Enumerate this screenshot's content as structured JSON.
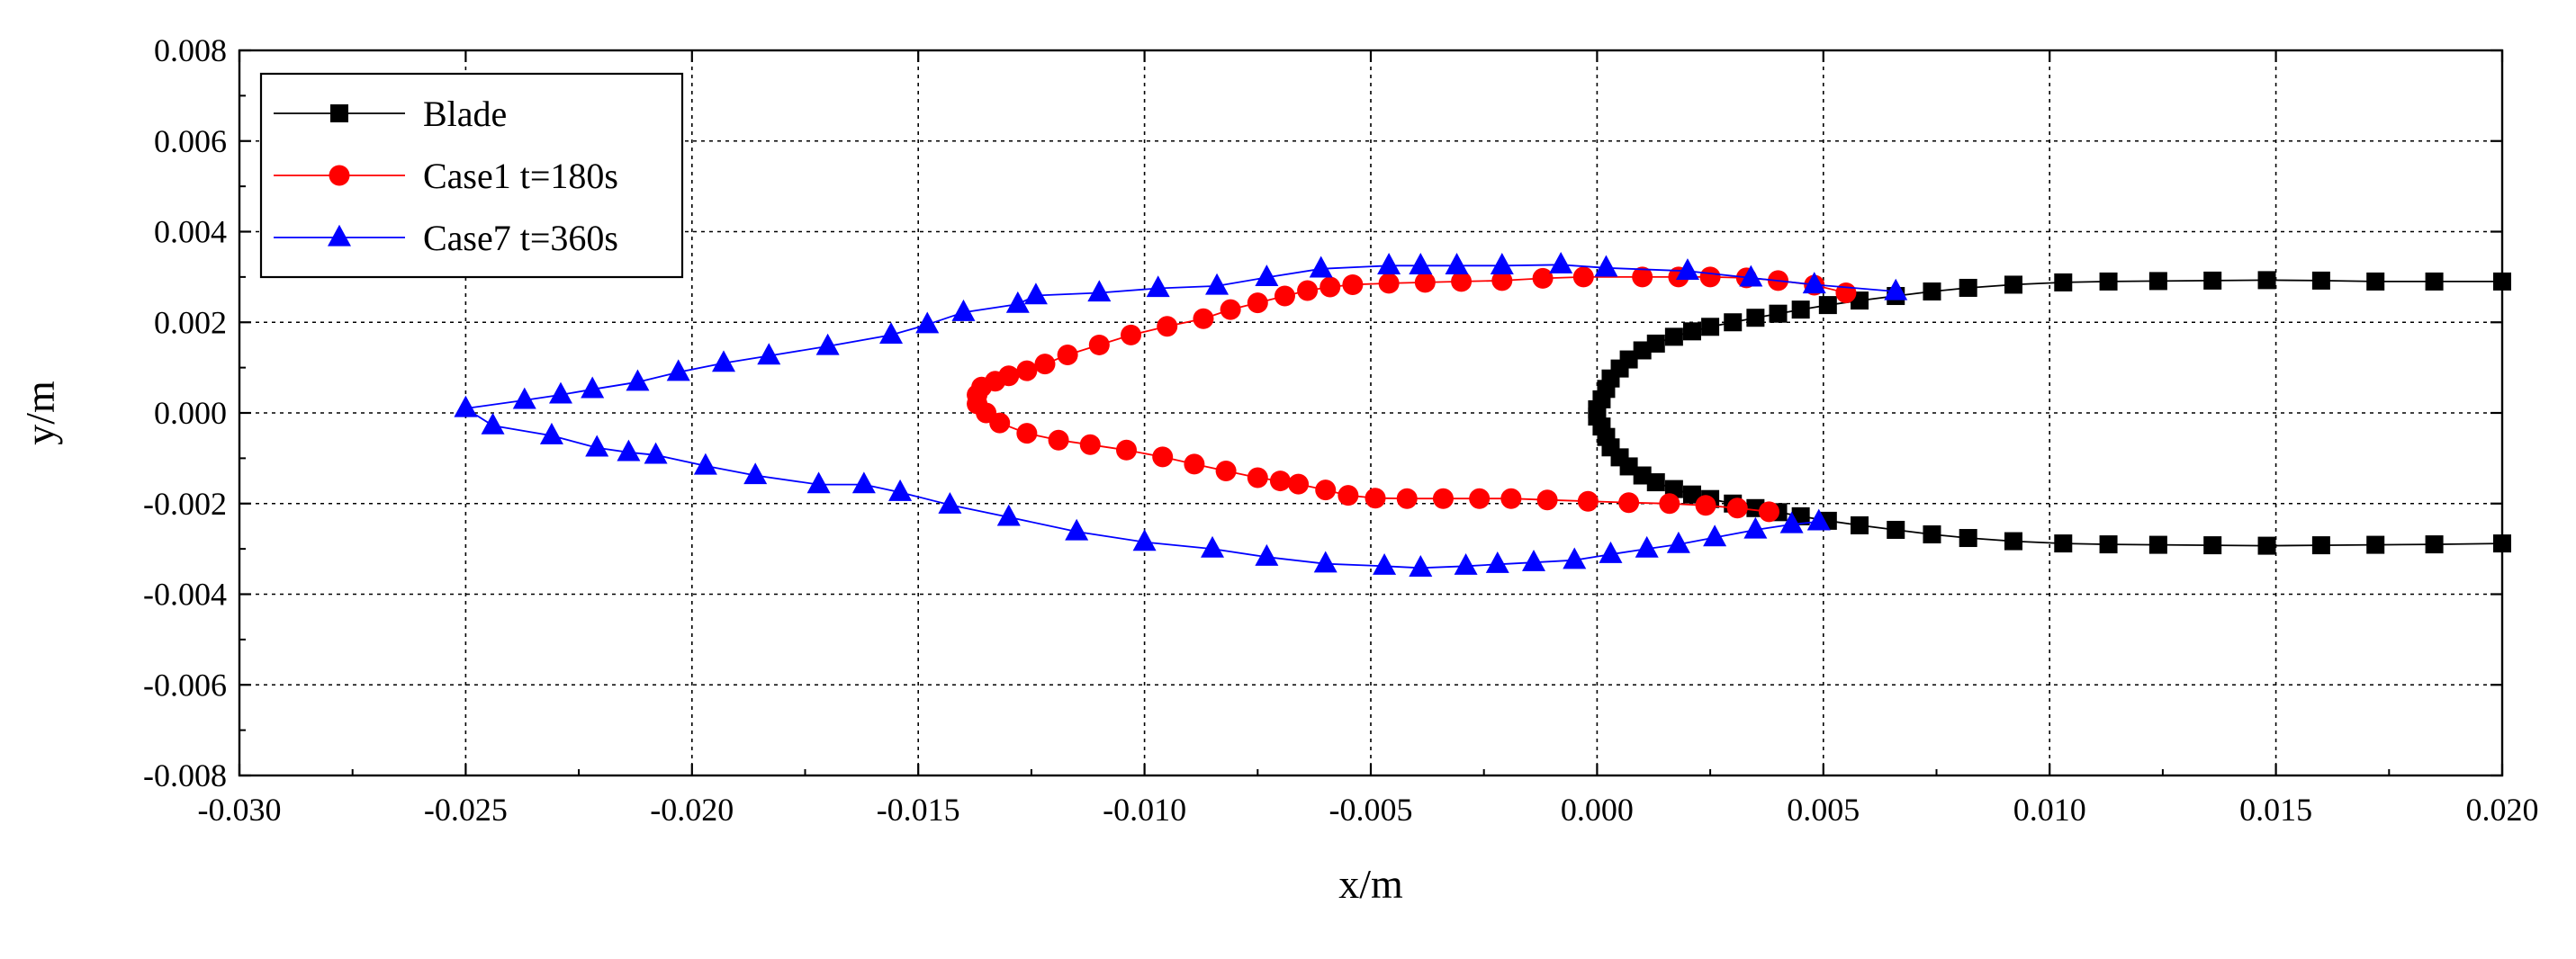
{
  "chart_data": {
    "type": "line",
    "title": "",
    "xlabel": "x/m",
    "ylabel": "y/m",
    "xlim": [
      -0.03,
      0.02
    ],
    "ylim": [
      -0.008,
      0.008
    ],
    "xticks": [
      -0.03,
      -0.025,
      -0.02,
      -0.015,
      -0.01,
      -0.005,
      0.0,
      0.005,
      0.01,
      0.015,
      0.02
    ],
    "yticks": [
      -0.008,
      -0.006,
      -0.004,
      -0.002,
      0.0,
      0.002,
      0.004,
      0.006,
      0.008
    ],
    "xtick_labels": [
      "-0.030",
      "-0.025",
      "-0.020",
      "-0.015",
      "-0.010",
      "-0.005",
      "0.000",
      "0.005",
      "0.010",
      "0.015",
      "0.020"
    ],
    "ytick_labels": [
      "-0.008",
      "-0.006",
      "-0.004",
      "-0.002",
      "0.000",
      "0.002",
      "0.004",
      "0.006",
      "0.008"
    ],
    "grid": true,
    "legend_position": "top-left",
    "series": [
      {
        "name": "Blade",
        "color": "#000000",
        "marker": "square",
        "points": [
          [
            0.02,
            0.0029
          ],
          [
            0.0185,
            0.0029
          ],
          [
            0.0172,
            0.0029
          ],
          [
            0.016,
            0.00292
          ],
          [
            0.0148,
            0.00293
          ],
          [
            0.0136,
            0.00292
          ],
          [
            0.0124,
            0.00291
          ],
          [
            0.0113,
            0.0029
          ],
          [
            0.0103,
            0.00288
          ],
          [
            0.0092,
            0.00283
          ],
          [
            0.0082,
            0.00276
          ],
          [
            0.0074,
            0.00268
          ],
          [
            0.0066,
            0.00258
          ],
          [
            0.0058,
            0.00248
          ],
          [
            0.0051,
            0.00238
          ],
          [
            0.0045,
            0.00228
          ],
          [
            0.004,
            0.00219
          ],
          [
            0.0035,
            0.0021
          ],
          [
            0.003,
            0.002
          ],
          [
            0.0025,
            0.0019
          ],
          [
            0.0021,
            0.0018
          ],
          [
            0.0017,
            0.00168
          ],
          [
            0.0013,
            0.00153
          ],
          [
            0.001,
            0.00138
          ],
          [
            0.0007,
            0.00118
          ],
          [
            0.0005,
            0.00098
          ],
          [
            0.0003,
            0.00076
          ],
          [
            0.0002,
            0.00053
          ],
          [
            0.0001,
            0.0003
          ],
          [
            0.0,
            8e-05
          ],
          [
            0.0,
            -8e-05
          ],
          [
            0.0001,
            -0.0003
          ],
          [
            0.0002,
            -0.00053
          ],
          [
            0.0003,
            -0.00076
          ],
          [
            0.0005,
            -0.00098
          ],
          [
            0.0007,
            -0.00118
          ],
          [
            0.001,
            -0.00138
          ],
          [
            0.0013,
            -0.00153
          ],
          [
            0.0017,
            -0.00168
          ],
          [
            0.0021,
            -0.0018
          ],
          [
            0.0025,
            -0.0019
          ],
          [
            0.003,
            -0.002
          ],
          [
            0.0035,
            -0.0021
          ],
          [
            0.004,
            -0.00219
          ],
          [
            0.0045,
            -0.00228
          ],
          [
            0.0051,
            -0.00238
          ],
          [
            0.0058,
            -0.00248
          ],
          [
            0.0066,
            -0.00258
          ],
          [
            0.0074,
            -0.00268
          ],
          [
            0.0082,
            -0.00276
          ],
          [
            0.0092,
            -0.00283
          ],
          [
            0.0103,
            -0.00288
          ],
          [
            0.0113,
            -0.0029
          ],
          [
            0.0124,
            -0.00291
          ],
          [
            0.0136,
            -0.00292
          ],
          [
            0.0148,
            -0.00293
          ],
          [
            0.016,
            -0.00292
          ],
          [
            0.0172,
            -0.00291
          ],
          [
            0.0185,
            -0.0029
          ],
          [
            0.02,
            -0.00288
          ]
        ]
      },
      {
        "name": "Case1 t=180s",
        "color": "#ff0000",
        "marker": "circle",
        "points": [
          [
            0.0055,
            0.00265
          ],
          [
            0.0048,
            0.00282
          ],
          [
            0.004,
            0.00292
          ],
          [
            0.0033,
            0.00298
          ],
          [
            0.0025,
            0.003
          ],
          [
            0.0018,
            0.003
          ],
          [
            0.001,
            0.003
          ],
          [
            -0.0003,
            0.003
          ],
          [
            -0.0012,
            0.00297
          ],
          [
            -0.0021,
            0.00292
          ],
          [
            -0.003,
            0.0029
          ],
          [
            -0.0038,
            0.00288
          ],
          [
            -0.0046,
            0.00286
          ],
          [
            -0.0054,
            0.00283
          ],
          [
            -0.0059,
            0.00278
          ],
          [
            -0.0064,
            0.0027
          ],
          [
            -0.0069,
            0.00258
          ],
          [
            -0.0075,
            0.00243
          ],
          [
            -0.0081,
            0.00228
          ],
          [
            -0.0087,
            0.00208
          ],
          [
            -0.0095,
            0.00191
          ],
          [
            -0.0103,
            0.00172
          ],
          [
            -0.011,
            0.0015
          ],
          [
            -0.0117,
            0.00128
          ],
          [
            -0.0122,
            0.00108
          ],
          [
            -0.0126,
            0.00093
          ],
          [
            -0.013,
            0.00082
          ],
          [
            -0.0133,
            0.0007
          ],
          [
            -0.0136,
            0.00057
          ],
          [
            -0.0137,
            0.0004
          ],
          [
            -0.0137,
            0.0002
          ],
          [
            -0.0135,
            0.0
          ],
          [
            -0.0132,
            -0.00022
          ],
          [
            -0.0126,
            -0.00045
          ],
          [
            -0.0119,
            -0.0006
          ],
          [
            -0.0112,
            -0.0007
          ],
          [
            -0.0104,
            -0.00082
          ],
          [
            -0.0096,
            -0.00097
          ],
          [
            -0.0089,
            -0.00113
          ],
          [
            -0.0082,
            -0.00128
          ],
          [
            -0.0075,
            -0.00143
          ],
          [
            -0.007,
            -0.0015
          ],
          [
            -0.0066,
            -0.00157
          ],
          [
            -0.006,
            -0.0017
          ],
          [
            -0.0055,
            -0.00182
          ],
          [
            -0.0049,
            -0.00188
          ],
          [
            -0.0042,
            -0.00189
          ],
          [
            -0.0034,
            -0.00189
          ],
          [
            -0.0026,
            -0.00189
          ],
          [
            -0.0019,
            -0.00189
          ],
          [
            -0.0011,
            -0.00192
          ],
          [
            -0.0002,
            -0.00195
          ],
          [
            0.0007,
            -0.00198
          ],
          [
            0.0016,
            -0.002
          ],
          [
            0.0024,
            -0.00204
          ],
          [
            0.0031,
            -0.0021
          ],
          [
            0.0038,
            -0.00218
          ]
        ]
      },
      {
        "name": "Case7 t=360s",
        "color": "#0000ff",
        "marker": "triangle",
        "points": [
          [
            0.0066,
            0.00268
          ],
          [
            0.0048,
            0.00283
          ],
          [
            0.0034,
            0.00298
          ],
          [
            0.002,
            0.00313
          ],
          [
            0.0002,
            0.0032
          ],
          [
            -0.0008,
            0.00327
          ],
          [
            -0.0021,
            0.00325
          ],
          [
            -0.0031,
            0.00325
          ],
          [
            -0.0039,
            0.00325
          ],
          [
            -0.0046,
            0.00325
          ],
          [
            -0.0061,
            0.00318
          ],
          [
            -0.0073,
            0.00299
          ],
          [
            -0.0084,
            0.0028
          ],
          [
            -0.0097,
            0.00275
          ],
          [
            -0.011,
            0.00265
          ],
          [
            -0.0124,
            0.00259
          ],
          [
            -0.0128,
            0.0024
          ],
          [
            -0.014,
            0.00222
          ],
          [
            -0.0148,
            0.00195
          ],
          [
            -0.0156,
            0.00172
          ],
          [
            -0.017,
            0.00147
          ],
          [
            -0.0183,
            0.00126
          ],
          [
            -0.0193,
            0.0011
          ],
          [
            -0.0203,
            0.0009
          ],
          [
            -0.0212,
            0.00068
          ],
          [
            -0.0222,
            0.00052
          ],
          [
            -0.0229,
            0.0004
          ],
          [
            -0.0237,
            0.00028
          ],
          [
            -0.025,
            0.0001
          ],
          [
            -0.0244,
            -0.00028
          ],
          [
            -0.0231,
            -0.0005
          ],
          [
            -0.0221,
            -0.00077
          ],
          [
            -0.0214,
            -0.00087
          ],
          [
            -0.0208,
            -0.00093
          ],
          [
            -0.0197,
            -0.00117
          ],
          [
            -0.0186,
            -0.00138
          ],
          [
            -0.0172,
            -0.00158
          ],
          [
            -0.0162,
            -0.00158
          ],
          [
            -0.0154,
            -0.00175
          ],
          [
            -0.0143,
            -0.00203
          ],
          [
            -0.013,
            -0.0023
          ],
          [
            -0.0115,
            -0.00262
          ],
          [
            -0.01,
            -0.00285
          ],
          [
            -0.0085,
            -0.003
          ],
          [
            -0.0073,
            -0.00318
          ],
          [
            -0.006,
            -0.00333
          ],
          [
            -0.0047,
            -0.00338
          ],
          [
            -0.0039,
            -0.00342
          ],
          [
            -0.0029,
            -0.00338
          ],
          [
            -0.0022,
            -0.00334
          ],
          [
            -0.0014,
            -0.0033
          ],
          [
            -0.0005,
            -0.00325
          ],
          [
            0.0003,
            -0.00312
          ],
          [
            0.0011,
            -0.003
          ],
          [
            0.0018,
            -0.0029
          ],
          [
            0.0026,
            -0.00275
          ],
          [
            0.0035,
            -0.00258
          ],
          [
            0.0043,
            -0.00246
          ],
          [
            0.0049,
            -0.0024
          ]
        ]
      }
    ]
  }
}
